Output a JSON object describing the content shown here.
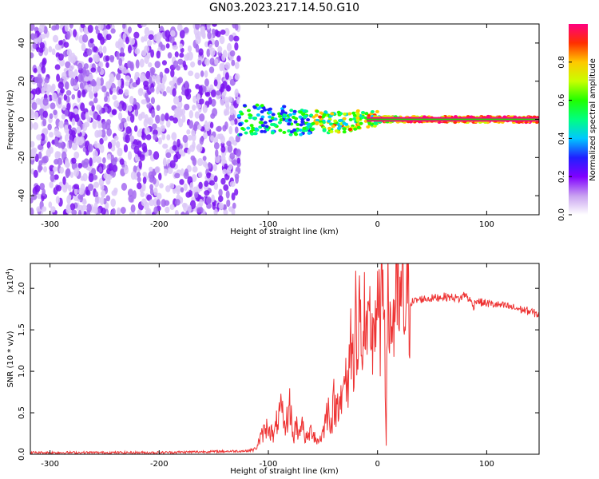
{
  "title": "GN03.2023.217.14.50.G10",
  "chart_data": [
    {
      "type": "heatmap",
      "xlabel": "Height of straight line (km)",
      "ylabel": "Frequency (Hz)",
      "xlim": [
        -318,
        148
      ],
      "ylim": [
        -50,
        50
      ],
      "x_ticks": [
        -300,
        -200,
        -100,
        0,
        100
      ],
      "x_tick_labels": [
        "-300",
        "-200",
        "-100",
        "0",
        "100"
      ],
      "y_ticks": [
        -40,
        -20,
        0,
        20,
        40
      ],
      "y_tick_labels": [
        "-40",
        "-20",
        "0",
        "20",
        "40"
      ],
      "colorbar": {
        "label": "Normalized spectral amplitude",
        "range": [
          0,
          1
        ],
        "ticks": [
          0.0,
          0.2,
          0.4,
          0.6,
          0.8
        ],
        "tick_labels": [
          "0.0",
          "0.2",
          "0.4",
          "0.6",
          "0.8"
        ],
        "colors": [
          "#ffffff",
          "#c8a0f0",
          "#8000ff",
          "#2020ff",
          "#00c8ff",
          "#00ff80",
          "#20ff00",
          "#c8ff00",
          "#ffc800",
          "#ff3000",
          "#ff0080"
        ]
      },
      "regions": [
        {
          "x_range": [
            -318,
            -127
          ],
          "description_level": 0.25
        },
        {
          "x_range": [
            -127,
            148
          ],
          "center_freq": 0
        }
      ],
      "grid": false
    },
    {
      "type": "line",
      "xlabel": "Height of straight line (km)",
      "ylabel": "SNR (10 * v/v)",
      "multiplier_label": "(x10",
      "multiplier_exp": "4",
      "xlim": [
        -318,
        148
      ],
      "ylim": [
        0,
        23000
      ],
      "x_ticks": [
        -300,
        -200,
        -100,
        0,
        100
      ],
      "x_tick_labels": [
        "-300",
        "-200",
        "-100",
        "0",
        "100"
      ],
      "y_ticks": [
        0,
        5000,
        10000,
        15000,
        20000
      ],
      "y_tick_labels": [
        "0.0",
        "0.5",
        "1.0",
        "1.5",
        "2.0"
      ],
      "series": [
        {
          "color": "#ee3333",
          "x": [
            -318,
            -200,
            -120,
            -112,
            -105,
            -100,
            -95,
            -92,
            -88,
            -85,
            -80,
            -77,
            -75,
            -72,
            -70,
            -67,
            -65,
            -60,
            -55,
            -50,
            -48,
            -45,
            -42,
            -40,
            -38,
            -35,
            -32,
            -30,
            -28,
            -25,
            -22,
            -20,
            -19,
            -18,
            -16,
            -15,
            -14,
            -12,
            -10,
            -8,
            -6,
            -5,
            -4,
            -2,
            0,
            2,
            4,
            6,
            8,
            9,
            10,
            12,
            15,
            20,
            25,
            30,
            35,
            40,
            50,
            60,
            70,
            75,
            80,
            85,
            88,
            90,
            95,
            100,
            110,
            120,
            130,
            140,
            148
          ],
          "y": [
            200,
            200,
            400,
            600,
            2500,
            3500,
            2000,
            4000,
            5200,
            3000,
            6000,
            1500,
            3800,
            2500,
            4200,
            2200,
            1800,
            3000,
            1500,
            2500,
            4000,
            5500,
            3500,
            6500,
            5000,
            8000,
            6000,
            9500,
            7000,
            14000,
            11000,
            23000,
            10000,
            8000,
            23000,
            9000,
            14000,
            16000,
            12000,
            14000,
            16500,
            13000,
            15500,
            17000,
            16000,
            15500,
            17000,
            23000,
            1500,
            16000,
            19000,
            15000,
            17000,
            17800,
            18000,
            18300,
            18500,
            18700,
            18800,
            19000,
            18900,
            18700,
            19300,
            18500,
            17800,
            18600,
            18300,
            18200,
            18000,
            17800,
            17500,
            17200,
            16800
          ]
        }
      ],
      "grid": false
    }
  ]
}
